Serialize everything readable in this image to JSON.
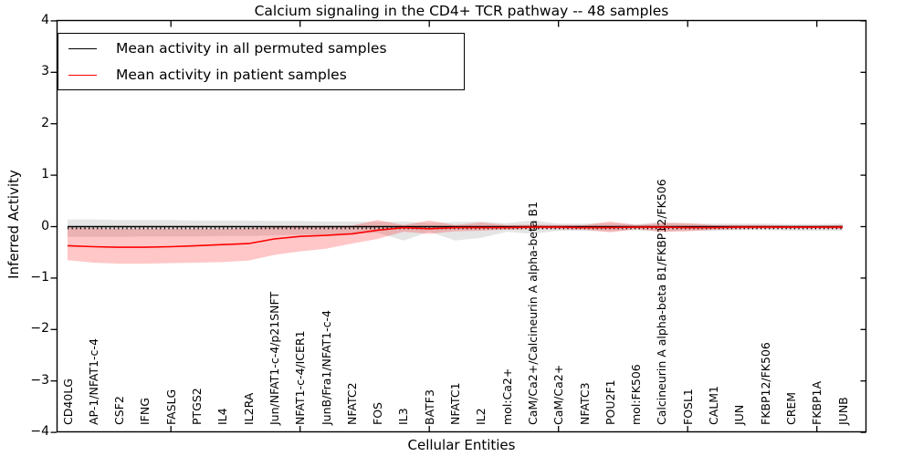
{
  "legend": {
    "entries": [
      {
        "label": "Mean activity in all permuted samples",
        "color": "#000000"
      },
      {
        "label": "Mean activity in patient samples",
        "color": "#ff0000"
      }
    ]
  },
  "chart_data": {
    "type": "line",
    "title": "Calcium signaling in the CD4+ TCR pathway -- 48 samples",
    "xlabel": "Cellular Entities",
    "ylabel": "Inferred Activity",
    "ylim": [
      -4,
      4
    ],
    "yticks": [
      -4,
      -3,
      -2,
      -1,
      0,
      1,
      2,
      3,
      4
    ],
    "xtick_positions": [
      5,
      10,
      15,
      20,
      25,
      30
    ],
    "grid": false,
    "legend_position": "upper left",
    "zero_reference_line": {
      "color": "#000000",
      "style": "dotted",
      "y": 0
    },
    "categories": [
      "CD40LG",
      "AP-1/NFAT1-c-4",
      "CSF2",
      "IFNG",
      "FASLG",
      "PTGS2",
      "IL4",
      "IL2RA",
      "Jun/NFAT1-c-4/p21SNFT",
      "NFAT1-c-4/ICER1",
      "JunB/Fra1/NFAT1-c-4",
      "NFATC2",
      "FOS",
      "IL3",
      "BATF3",
      "NFATC1",
      "IL2",
      "mol:Ca2+",
      "CaM/Ca2+/Calcineurin A alpha-beta B1",
      "CaM/Ca2+",
      "NFATC3",
      "POU2F1",
      "mol:FK506",
      "Calcineurin A alpha-beta B1/FKBP12/FK506",
      "FOSL1",
      "CALM1",
      "JUN",
      "FKBP12/FK506",
      "CREM",
      "FKBP1A",
      "JUNB"
    ],
    "series": [
      {
        "name": "Mean activity in all permuted samples",
        "color": "#000000",
        "line_width": 1.4,
        "band_opacity": 0.1,
        "values": [
          0,
          0,
          0,
          0,
          0,
          0,
          0,
          0,
          0,
          0,
          0,
          0,
          0,
          0,
          0,
          0,
          0,
          0,
          0,
          0,
          0,
          0,
          0,
          0,
          0,
          0,
          0,
          0,
          0,
          0,
          0
        ],
        "band_upper": [
          0.14,
          0.14,
          0.13,
          0.13,
          0.13,
          0.12,
          0.12,
          0.12,
          0.11,
          0.11,
          0.1,
          0.1,
          0.09,
          0.1,
          0.07,
          0.09,
          0.1,
          0.07,
          0.12,
          0.06,
          0.06,
          0.07,
          0.05,
          0.09,
          0.06,
          0.06,
          0.06,
          0.06,
          0.05,
          0.05,
          0.06
        ],
        "band_lower": [
          -0.2,
          -0.2,
          -0.2,
          -0.19,
          -0.19,
          -0.19,
          -0.18,
          -0.18,
          -0.17,
          -0.16,
          -0.15,
          -0.14,
          -0.12,
          -0.27,
          -0.1,
          -0.27,
          -0.22,
          -0.1,
          -0.14,
          -0.08,
          -0.08,
          -0.09,
          -0.07,
          -0.1,
          -0.08,
          -0.08,
          -0.07,
          -0.07,
          -0.08,
          -0.08,
          -0.08
        ]
      },
      {
        "name": "Mean activity in patient samples",
        "color": "#ff0000",
        "line_width": 1.6,
        "band_opacity": 0.22,
        "values": [
          -0.37,
          -0.39,
          -0.4,
          -0.4,
          -0.39,
          -0.37,
          -0.35,
          -0.33,
          -0.24,
          -0.19,
          -0.17,
          -0.14,
          -0.07,
          -0.02,
          -0.04,
          -0.02,
          -0.02,
          -0.02,
          -0.01,
          -0.01,
          -0.02,
          -0.02,
          -0.01,
          -0.01,
          -0.02,
          -0.02,
          -0.01,
          -0.01,
          -0.01,
          -0.01,
          -0.01
        ],
        "band_upper": [
          -0.02,
          -0.03,
          -0.04,
          -0.04,
          -0.04,
          -0.04,
          -0.04,
          -0.03,
          -0.01,
          0.0,
          0.01,
          0.02,
          0.13,
          0.03,
          0.12,
          0.03,
          0.08,
          0.03,
          0.04,
          0.03,
          0.03,
          0.1,
          0.03,
          0.07,
          0.07,
          0.03,
          0.03,
          0.03,
          0.02,
          0.02,
          0.03
        ],
        "band_lower": [
          -0.65,
          -0.7,
          -0.72,
          -0.72,
          -0.71,
          -0.7,
          -0.69,
          -0.66,
          -0.55,
          -0.48,
          -0.43,
          -0.33,
          -0.24,
          -0.1,
          -0.14,
          -0.09,
          -0.08,
          -0.06,
          -0.05,
          -0.05,
          -0.06,
          -0.11,
          -0.05,
          -0.1,
          -0.09,
          -0.06,
          -0.05,
          -0.04,
          -0.04,
          -0.04,
          -0.05
        ]
      }
    ]
  }
}
